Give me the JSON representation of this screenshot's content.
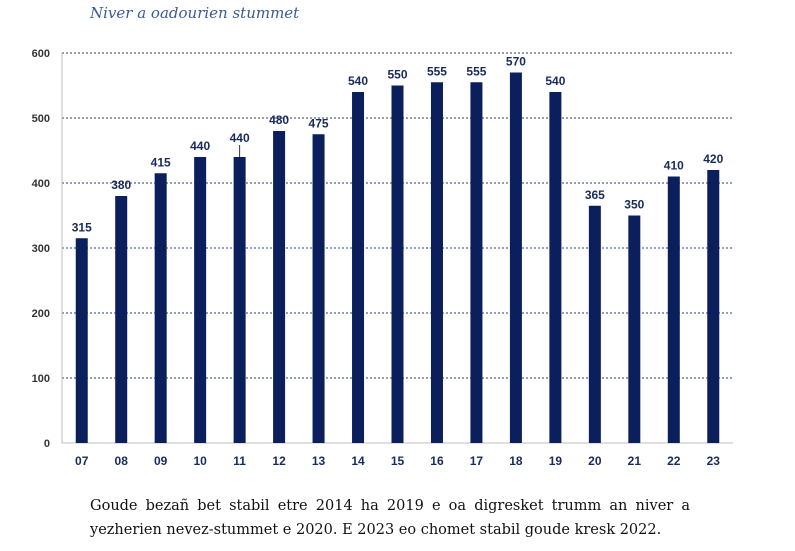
{
  "chart_data": {
    "type": "bar",
    "title": "Niver a oadourien stummet",
    "categories": [
      "07",
      "08",
      "09",
      "10",
      "11",
      "12",
      "13",
      "14",
      "15",
      "16",
      "17",
      "18",
      "19",
      "20",
      "21",
      "22",
      "23"
    ],
    "values": [
      315,
      380,
      415,
      440,
      440,
      480,
      475,
      540,
      550,
      555,
      555,
      570,
      540,
      365,
      350,
      410,
      420
    ],
    "data_labels": [
      "315",
      "380",
      "415",
      "440",
      "440",
      "480",
      "475",
      "540",
      "550",
      "555",
      "555",
      "570",
      "540",
      "365",
      "350",
      "410",
      "420"
    ],
    "yticks": [
      0,
      100,
      200,
      300,
      400,
      500,
      600
    ],
    "ylim": [
      0,
      600
    ],
    "xlabel": "",
    "ylabel": "",
    "grid": true,
    "bar_color": "#0b1f5c"
  },
  "caption": "Goude bezañ bet stabil etre 2014 ha 2019 e oa digresket trumm an niver a yezherien nevez-stummet e 2020. E 2023 eo chomet stabil goude kresk 2022."
}
